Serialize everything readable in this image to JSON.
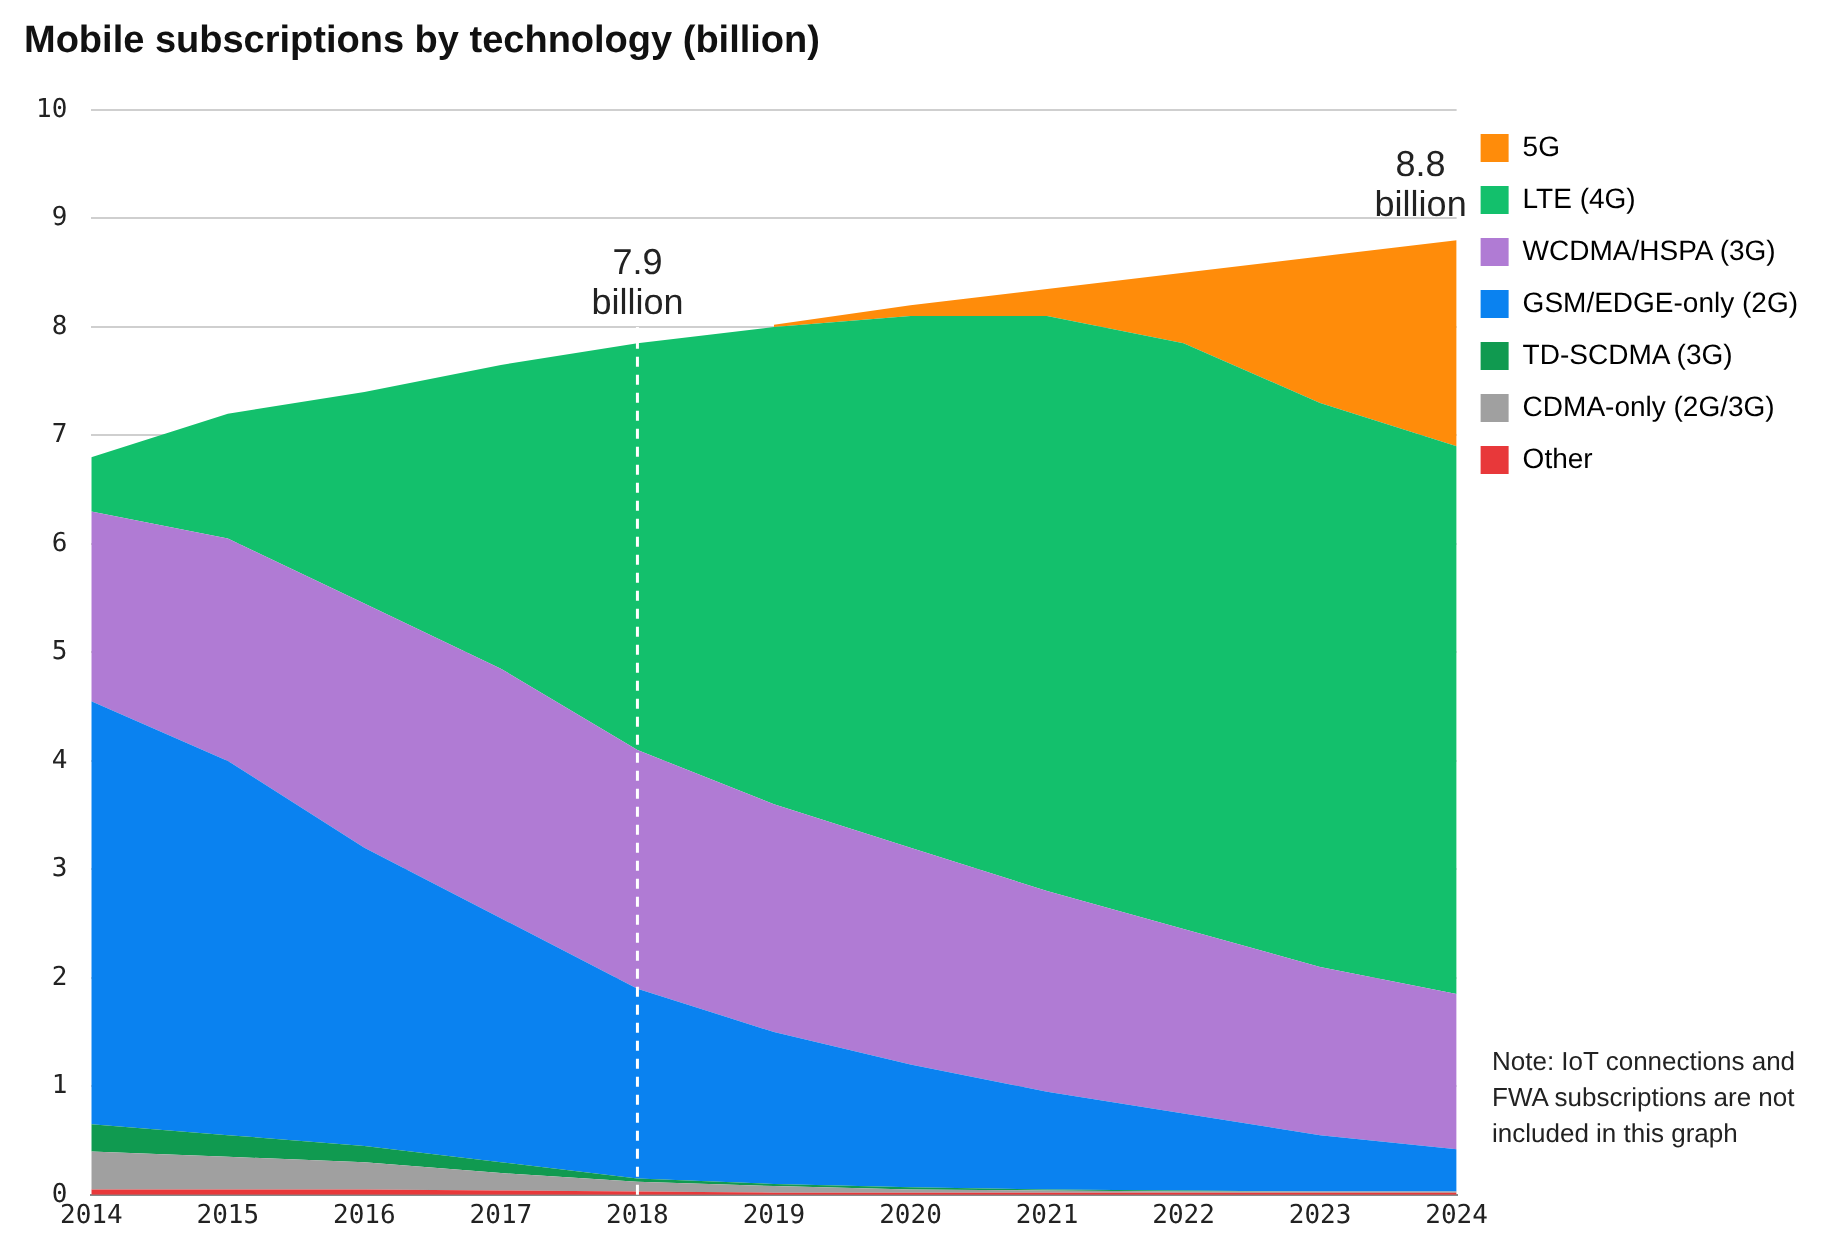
{
  "chart_data": {
    "type": "area",
    "title": "Mobile subscriptions by technology (billion)",
    "stacked": true,
    "x": [
      2014,
      2015,
      2016,
      2017,
      2018,
      2019,
      2020,
      2021,
      2022,
      2023,
      2024
    ],
    "series": [
      {
        "name": "Other",
        "color": "#e8383a",
        "values": [
          0.05,
          0.05,
          0.05,
          0.04,
          0.03,
          0.02,
          0.02,
          0.02,
          0.02,
          0.02,
          0.02
        ]
      },
      {
        "name": "CDMA-only (2G/3G)",
        "color": "#a0a0a0",
        "values": [
          0.35,
          0.3,
          0.25,
          0.16,
          0.09,
          0.06,
          0.03,
          0.02,
          0.01,
          0.01,
          0.01
        ]
      },
      {
        "name": "TD-SCDMA (3G)",
        "color": "#109a50",
        "values": [
          0.25,
          0.2,
          0.15,
          0.1,
          0.03,
          0.02,
          0.02,
          0.01,
          0.01,
          0,
          0
        ]
      },
      {
        "name": "GSM/EDGE-only (2G)",
        "color": "#0a82f0",
        "values": [
          3.9,
          3.45,
          2.75,
          2.25,
          1.75,
          1.4,
          1.13,
          0.9,
          0.71,
          0.52,
          0.39
        ]
      },
      {
        "name": "WCDMA/HSPA (3G)",
        "color": "#b07bd4",
        "values": [
          1.75,
          2.05,
          2.25,
          2.3,
          2.2,
          2.1,
          2.0,
          1.85,
          1.7,
          1.55,
          1.43
        ]
      },
      {
        "name": "LTE (4G)",
        "color": "#13c06c",
        "values": [
          0.5,
          1.15,
          1.95,
          2.8,
          3.75,
          4.4,
          4.9,
          5.3,
          5.4,
          5.2,
          5.05
        ]
      },
      {
        "name": "5G",
        "color": "#ff8c0a",
        "values": [
          null,
          null,
          null,
          null,
          null,
          0.02,
          0.1,
          0.25,
          0.65,
          1.35,
          1.9
        ]
      }
    ],
    "xlim": [
      2014,
      2024
    ],
    "xticks": [
      2014,
      2015,
      2016,
      2017,
      2018,
      2019,
      2020,
      2021,
      2022,
      2023,
      2024
    ],
    "ylim": [
      0,
      10
    ],
    "yticks": [
      0,
      1,
      2,
      3,
      4,
      5,
      6,
      7,
      8,
      9,
      10
    ],
    "grid": "y",
    "legend": "top right",
    "marker": "none",
    "ref_lines": [
      {
        "axis": "x",
        "value": 2018,
        "color": "#ffffff",
        "line_style": "dashed"
      }
    ],
    "annotations": [
      {
        "text": "7.9 billion",
        "x": 2018,
        "y": 7.9
      },
      {
        "text": "8.8 billion",
        "x": 2024,
        "y": 8.8
      },
      "Note: IoT connections and FWA subscriptions are not included in this graph"
    ]
  }
}
